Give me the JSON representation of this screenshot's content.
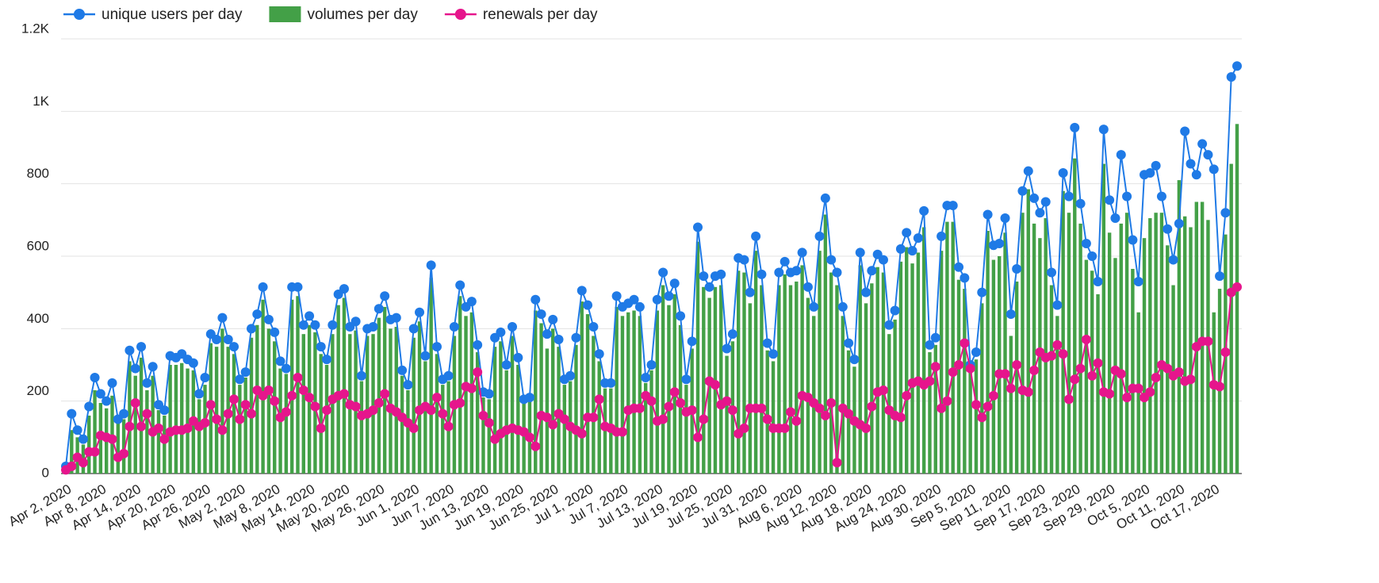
{
  "chart_data": {
    "type": "combo",
    "categories": [
      "Apr 2, 2020",
      null,
      null,
      null,
      null,
      null,
      "Apr 8, 2020",
      null,
      null,
      null,
      null,
      null,
      "Apr 14, 2020",
      null,
      null,
      null,
      null,
      null,
      "Apr 20, 2020",
      null,
      null,
      null,
      null,
      null,
      "Apr 26, 2020",
      null,
      null,
      null,
      null,
      null,
      "May 2, 2020",
      null,
      null,
      null,
      null,
      null,
      "May 8, 2020",
      null,
      null,
      null,
      null,
      null,
      "May 14, 2020",
      null,
      null,
      null,
      null,
      null,
      "May 20, 2020",
      null,
      null,
      null,
      null,
      null,
      "May 26, 2020",
      null,
      null,
      null,
      null,
      null,
      "Jun 1, 2020",
      null,
      null,
      null,
      null,
      null,
      "Jun 7, 2020",
      null,
      null,
      null,
      null,
      null,
      "Jun 13, 2020",
      null,
      null,
      null,
      null,
      null,
      "Jun 19, 2020",
      null,
      null,
      null,
      null,
      null,
      "Jun 25, 2020",
      null,
      null,
      null,
      null,
      null,
      "Jul 1, 2020",
      null,
      null,
      null,
      null,
      null,
      "Jul 7, 2020",
      null,
      null,
      null,
      null,
      null,
      "Jul 13, 2020",
      null,
      null,
      null,
      null,
      null,
      "Jul 19, 2020",
      null,
      null,
      null,
      null,
      null,
      "Jul 25, 2020",
      null,
      null,
      null,
      null,
      null,
      "Jul 31, 2020",
      null,
      null,
      null,
      null,
      null,
      "Aug 6, 2020",
      null,
      null,
      null,
      null,
      null,
      "Aug 12, 2020",
      null,
      null,
      null,
      null,
      null,
      "Aug 18, 2020",
      null,
      null,
      null,
      null,
      null,
      "Aug 24, 2020",
      null,
      null,
      null,
      null,
      null,
      "Aug 30, 2020",
      null,
      null,
      null,
      null,
      null,
      "Sep 5, 2020",
      null,
      null,
      null,
      null,
      null,
      "Sep 11, 2020",
      null,
      null,
      null,
      null,
      null,
      "Sep 17, 2020",
      null,
      null,
      null,
      null,
      null,
      "Sep 23, 2020",
      null,
      null,
      null,
      null,
      null,
      "Sep 29, 2020",
      null,
      null,
      null,
      null,
      null,
      "Oct 5, 2020",
      null,
      null,
      null,
      null,
      null,
      "Oct 11, 2020",
      null,
      null,
      null,
      null,
      null,
      "Oct 17, 2020",
      null,
      null,
      null,
      null
    ],
    "series": [
      {
        "name": "volumes per day",
        "type": "bar",
        "color": "#43a047",
        "values": [
          10,
          120,
          100,
          80,
          160,
          230,
          195,
          180,
          215,
          140,
          150,
          310,
          270,
          320,
          230,
          270,
          175,
          160,
          300,
          300,
          305,
          290,
          285,
          205,
          245,
          360,
          350,
          400,
          350,
          330,
          245,
          265,
          375,
          410,
          480,
          400,
          365,
          290,
          275,
          480,
          490,
          385,
          410,
          390,
          330,
          300,
          385,
          465,
          485,
          385,
          395,
          255,
          380,
          385,
          430,
          460,
          400,
          405,
          270,
          230,
          375,
          420,
          310,
          540,
          330,
          245,
          255,
          380,
          490,
          435,
          445,
          335,
          210,
          205,
          350,
          365,
          285,
          380,
          300,
          195,
          200,
          450,
          415,
          345,
          400,
          350,
          245,
          255,
          355,
          475,
          440,
          380,
          310,
          235,
          235,
          460,
          435,
          445,
          450,
          435,
          250,
          285,
          450,
          520,
          465,
          495,
          410,
          245,
          345,
          640,
          515,
          485,
          515,
          520,
          325,
          365,
          560,
          555,
          470,
          615,
          520,
          340,
          310,
          520,
          550,
          520,
          530,
          575,
          485,
          435,
          615,
          715,
          555,
          520,
          435,
          340,
          295,
          575,
          470,
          525,
          570,
          555,
          385,
          425,
          585,
          625,
          580,
          610,
          680,
          335,
          355,
          615,
          695,
          695,
          535,
          510,
          285,
          315,
          470,
          670,
          590,
          600,
          665,
          380,
          530,
          720,
          785,
          690,
          650,
          705,
          520,
          435,
          780,
          720,
          870,
          690,
          590,
          560,
          495,
          855,
          665,
          595,
          690,
          720,
          565,
          445,
          650,
          705,
          720,
          720,
          630,
          520,
          810,
          710,
          680,
          750,
          750,
          700,
          445,
          510,
          660,
          855,
          965
        ]
      },
      {
        "name": "unique users per day",
        "type": "line",
        "color": "#1f7ae6",
        "values": [
          20,
          165,
          120,
          95,
          185,
          265,
          220,
          200,
          250,
          150,
          165,
          340,
          290,
          350,
          250,
          295,
          190,
          175,
          325,
          320,
          330,
          315,
          305,
          220,
          265,
          385,
          370,
          430,
          370,
          350,
          260,
          280,
          400,
          440,
          515,
          425,
          390,
          310,
          290,
          515,
          515,
          410,
          435,
          410,
          350,
          315,
          410,
          495,
          510,
          405,
          420,
          270,
          400,
          405,
          455,
          490,
          425,
          430,
          285,
          245,
          400,
          445,
          325,
          575,
          350,
          260,
          270,
          405,
          520,
          460,
          475,
          355,
          225,
          220,
          375,
          390,
          300,
          405,
          320,
          205,
          210,
          480,
          440,
          385,
          425,
          370,
          260,
          270,
          375,
          505,
          465,
          405,
          330,
          250,
          250,
          490,
          460,
          470,
          480,
          460,
          265,
          300,
          480,
          555,
          490,
          525,
          435,
          260,
          365,
          680,
          545,
          515,
          545,
          550,
          345,
          385,
          595,
          590,
          500,
          655,
          550,
          360,
          330,
          555,
          585,
          555,
          560,
          610,
          515,
          460,
          655,
          760,
          590,
          555,
          460,
          360,
          315,
          610,
          500,
          560,
          605,
          590,
          410,
          450,
          620,
          665,
          615,
          650,
          725,
          355,
          375,
          655,
          740,
          740,
          570,
          540,
          300,
          335,
          500,
          715,
          630,
          635,
          705,
          440,
          565,
          780,
          835,
          760,
          720,
          750,
          555,
          465,
          830,
          765,
          955,
          745,
          635,
          600,
          530,
          950,
          755,
          705,
          880,
          765,
          645,
          530,
          825,
          830,
          850,
          765,
          675,
          590,
          690,
          945,
          855,
          825,
          910,
          880,
          840,
          545,
          720,
          1095,
          1125
        ]
      },
      {
        "name": "renewals per day",
        "type": "line",
        "color": "#e6158c",
        "values": [
          10,
          20,
          45,
          30,
          60,
          60,
          105,
          100,
          95,
          45,
          55,
          130,
          195,
          130,
          165,
          115,
          125,
          95,
          115,
          120,
          120,
          125,
          145,
          130,
          140,
          190,
          150,
          120,
          165,
          205,
          150,
          190,
          165,
          230,
          215,
          230,
          200,
          155,
          170,
          215,
          265,
          230,
          210,
          185,
          125,
          175,
          205,
          215,
          220,
          190,
          185,
          160,
          165,
          175,
          195,
          220,
          180,
          170,
          155,
          140,
          125,
          175,
          185,
          175,
          210,
          165,
          130,
          190,
          195,
          240,
          235,
          280,
          160,
          140,
          95,
          110,
          120,
          125,
          120,
          115,
          100,
          75,
          160,
          155,
          135,
          165,
          150,
          130,
          120,
          110,
          155,
          155,
          205,
          130,
          125,
          115,
          115,
          175,
          180,
          180,
          215,
          200,
          145,
          150,
          185,
          225,
          195,
          170,
          175,
          100,
          150,
          255,
          245,
          190,
          200,
          175,
          110,
          125,
          180,
          180,
          180,
          150,
          125,
          125,
          125,
          170,
          145,
          215,
          210,
          195,
          180,
          160,
          195,
          30,
          180,
          165,
          145,
          135,
          125,
          185,
          225,
          230,
          175,
          160,
          155,
          215,
          250,
          255,
          245,
          255,
          295,
          180,
          200,
          280,
          300,
          360,
          290,
          190,
          155,
          185,
          215,
          275,
          275,
          235,
          300,
          230,
          225,
          285,
          335,
          320,
          325,
          355,
          330,
          205,
          260,
          290,
          370,
          270,
          305,
          225,
          220,
          285,
          275,
          210,
          235,
          235,
          210,
          225,
          265,
          300,
          290,
          270,
          280,
          255,
          260,
          350,
          365,
          365,
          245,
          240,
          335,
          500,
          515
        ]
      }
    ],
    "legend_order": [
      1,
      0,
      2
    ],
    "ylim": [
      0,
      1200
    ],
    "yticks": [
      0,
      200,
      400,
      600,
      800,
      {
        "value": 1000,
        "label": "1K"
      },
      {
        "value": 1200,
        "label": "1.2K"
      }
    ],
    "grid": true
  }
}
